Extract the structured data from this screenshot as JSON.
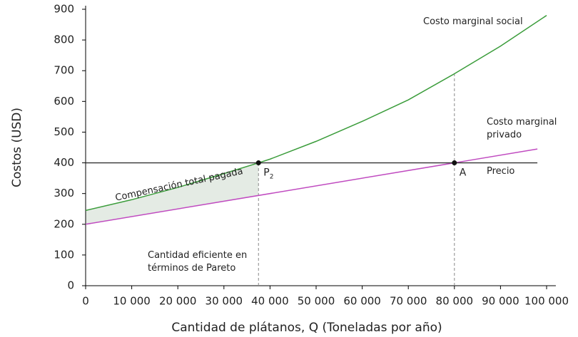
{
  "chart_data": {
    "type": "line",
    "xlabel": "Cantidad de plátanos, Q (Toneladas por año)",
    "ylabel": "Costos (USD)",
    "xlim": [
      0,
      102000
    ],
    "ylim": [
      0,
      900
    ],
    "xticks": [
      0,
      {
        "value": 10000,
        "label": "10 000"
      },
      {
        "value": 20000,
        "label": "20 000"
      },
      {
        "value": 30000,
        "label": "30 000"
      },
      {
        "value": 40000,
        "label": "40 000"
      },
      {
        "value": 50000,
        "label": "50 000"
      },
      {
        "value": 60000,
        "label": "60 000"
      },
      {
        "value": 70000,
        "label": "70 000"
      },
      {
        "value": 80000,
        "label": "80 000"
      },
      {
        "value": 90000,
        "label": "90 000"
      },
      {
        "value": 100000,
        "label": "100 000"
      }
    ],
    "yticks": [
      0,
      100,
      200,
      300,
      400,
      500,
      600,
      700,
      800,
      900
    ],
    "series": [
      {
        "name": "Costo marginal social",
        "color": "#3a9c3a",
        "x": [
          0,
          10000,
          20000,
          30000,
          37500,
          40000,
          50000,
          60000,
          70000,
          80000,
          90000,
          100000
        ],
        "values": [
          245,
          280,
          320,
          365,
          400,
          412,
          470,
          535,
          605,
          690,
          780,
          880
        ]
      },
      {
        "name": "Costo marginal privado",
        "color": "#c04bc0",
        "x": [
          0,
          80000,
          98000
        ],
        "values": [
          200,
          400,
          445
        ]
      },
      {
        "name": "Precio",
        "color": "#333333",
        "x": [
          0,
          98000
        ],
        "values": [
          400,
          400
        ]
      }
    ],
    "shaded_area": {
      "name": "Compensación total pagada",
      "color": "#e4ebe4",
      "x": [
        0,
        10000,
        20000,
        30000,
        37500
      ],
      "upper": [
        245,
        280,
        320,
        365,
        400
      ],
      "lower": [
        200,
        225,
        250,
        275,
        294
      ]
    },
    "points": [
      {
        "label": "P",
        "subscript": "2",
        "x": 37500,
        "y": 400
      },
      {
        "label": "A",
        "x": 80000,
        "y": 400
      }
    ],
    "annotation": "Cantidad eficiente en términos de Pareto"
  }
}
